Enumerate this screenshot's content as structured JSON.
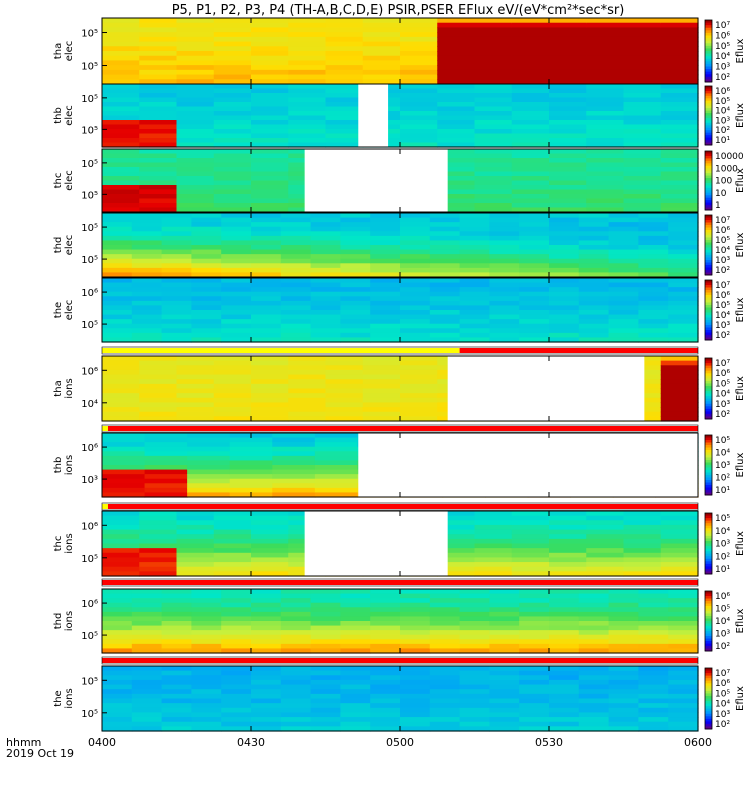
{
  "chart_data": {
    "type": "heatmap",
    "title": "P5, P1, P2, P3, P4 (TH-A,B,C,D,E) PSIR,PSER EFlux eV/(eV*cm²*sec*sr)",
    "xlabel": "hhmm",
    "date_label": "2019 Oct 19",
    "x_ticks": [
      "0400",
      "0430",
      "0500",
      "0530",
      "0600"
    ],
    "x_range": [
      "0400",
      "0600"
    ],
    "colorbar_unit": "Eflux",
    "panels": [
      {
        "name": "tha elec",
        "lines": [
          "tha",
          "elec"
        ],
        "y_ticks": [
          "10⁵",
          "10⁵"
        ],
        "colorbar_ticks": [
          "10⁷",
          "10⁶",
          "10⁵",
          "10⁴",
          "10³",
          "10²"
        ],
        "t_cols": 16,
        "gaps": [],
        "switch_time": 0.58,
        "switch_palette": "dark_red_top_stripe",
        "base_level": 0.72,
        "low_energy_level": 0.78
      },
      {
        "name": "thb elec",
        "lines": [
          "thb",
          "elec"
        ],
        "y_ticks": [
          "10⁵",
          "10⁵"
        ],
        "colorbar_ticks": [
          "10⁶",
          "10⁵",
          "10⁴",
          "10³",
          "10²",
          "10¹"
        ],
        "t_cols": 16,
        "gaps": [
          [
            0.43,
            0.48
          ]
        ],
        "low_block": {
          "end": 0.12,
          "level": 0.93
        },
        "base_level": 0.35,
        "low_energy_level": 0.4
      },
      {
        "name": "thc elec",
        "lines": [
          "thc",
          "elec"
        ],
        "y_ticks": [
          "10⁵",
          "10⁵"
        ],
        "colorbar_ticks": [
          "10000",
          "1000",
          "100",
          "10",
          "1"
        ],
        "t_cols": 16,
        "gaps": [
          [
            0.34,
            0.58
          ]
        ],
        "low_block": {
          "end": 0.11,
          "level": 0.95
        },
        "base_level": 0.45,
        "low_energy_level": 0.5
      },
      {
        "name": "thd elec",
        "lines": [
          "thd",
          "elec"
        ],
        "y_ticks": [
          "10⁵",
          "10⁵"
        ],
        "colorbar_ticks": [
          "10⁷",
          "10⁶",
          "10⁵",
          "10⁴",
          "10³",
          "10²"
        ],
        "t_cols": 20,
        "gaps": [],
        "base_level": 0.35,
        "low_energy_level": 0.85,
        "decay": true
      },
      {
        "name": "the elec",
        "lines": [
          "the",
          "elec"
        ],
        "y_ticks": [
          "10⁶",
          "10⁵"
        ],
        "colorbar_ticks": [
          "10⁷",
          "10⁶",
          "10⁵",
          "10⁴",
          "10³",
          "10²"
        ],
        "t_cols": 20,
        "gaps": [],
        "base_level": 0.32,
        "low_energy_level": 0.4
      },
      {
        "name": "tha ions",
        "lines": [
          "tha",
          "ions"
        ],
        "y_ticks": [
          "10⁶",
          "10⁴"
        ],
        "colorbar_ticks": [
          "10⁷",
          "10⁶",
          "10⁵",
          "10⁴",
          "10³",
          "10²"
        ],
        "t_cols": 16,
        "gaps": [
          [
            0.58,
            0.91
          ]
        ],
        "end_block": {
          "start": 0.91,
          "palette": "dark_red_top_stripe"
        },
        "base_level": 0.7,
        "low_energy_level": 0.72
      },
      {
        "name": "thb ions",
        "lines": [
          "thb",
          "ions"
        ],
        "y_ticks": [
          "10⁶",
          "10³"
        ],
        "colorbar_ticks": [
          "10⁵",
          "10⁴",
          "10³",
          "10²",
          "10¹"
        ],
        "t_cols": 14,
        "gaps": [
          [
            0.43,
            1.0
          ]
        ],
        "low_block": {
          "end": 0.12,
          "level": 0.93
        },
        "base_level": 0.35,
        "low_energy_level": 0.8
      },
      {
        "name": "thc ions",
        "lines": [
          "thc",
          "ions"
        ],
        "y_ticks": [
          "10⁶",
          "10⁵"
        ],
        "colorbar_ticks": [
          "10⁵",
          "10⁴",
          "10³",
          "10²",
          "10¹"
        ],
        "t_cols": 16,
        "gaps": [
          [
            0.34,
            0.58
          ]
        ],
        "low_block": {
          "end": 0.11,
          "level": 0.92
        },
        "base_level": 0.38,
        "low_energy_level": 0.72
      },
      {
        "name": "thd ions",
        "lines": [
          "thd",
          "ions"
        ],
        "y_ticks": [
          "10⁶",
          "10⁵"
        ],
        "colorbar_ticks": [
          "10⁶",
          "10⁵",
          "10⁴",
          "10³",
          "10²"
        ],
        "t_cols": 20,
        "gaps": [],
        "base_level": 0.42,
        "low_energy_level": 0.82
      },
      {
        "name": "the ions",
        "lines": [
          "the",
          "ions"
        ],
        "y_ticks": [
          "10⁵",
          "10⁵"
        ],
        "colorbar_ticks": [
          "10⁷",
          "10⁶",
          "10⁵",
          "10⁴",
          "10³",
          "10²"
        ],
        "t_cols": 20,
        "gaps": [],
        "base_level": 0.3,
        "low_energy_level": 0.35
      }
    ],
    "status_bars": [
      {
        "after_panel": 4,
        "segments": [
          {
            "from": 0.0,
            "to": 0.6,
            "color": "#ffff00"
          },
          {
            "from": 0.6,
            "to": 1.0,
            "color": "#ff0000"
          }
        ]
      },
      {
        "after_panel": 5,
        "segments": [
          {
            "from": 0.0,
            "to": 0.01,
            "color": "#ffff00"
          },
          {
            "from": 0.01,
            "to": 1.0,
            "color": "#ff0000"
          }
        ]
      },
      {
        "after_panel": 6,
        "segments": [
          {
            "from": 0.0,
            "to": 0.01,
            "color": "#ffff00"
          },
          {
            "from": 0.01,
            "to": 1.0,
            "color": "#ff0000"
          }
        ]
      },
      {
        "after_panel": 7,
        "segments": [
          {
            "from": 0.0,
            "to": 1.0,
            "color": "#ff0000"
          }
        ]
      },
      {
        "after_panel": 8,
        "segments": [
          {
            "from": 0.0,
            "to": 1.0,
            "color": "#ff0000"
          }
        ]
      }
    ],
    "grid": false
  }
}
